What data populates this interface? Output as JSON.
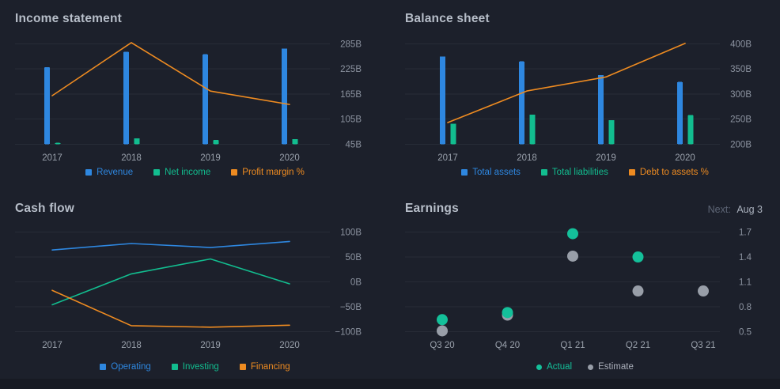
{
  "theme": {
    "background": "#1c202b",
    "gridline": "#272c37",
    "title_text": "#b7bec9",
    "y_tick_text": "#8c93a0",
    "x_tick_text": "#99a0ab",
    "blue": "#2e87e0",
    "teal": "#12bd8f",
    "orange": "#ee8b21",
    "gray": "#989ea8"
  },
  "chart_data": [
    {
      "id": "income-statement",
      "type": "bar",
      "title": "Income statement",
      "categories": [
        "2017",
        "2018",
        "2019",
        "2020"
      ],
      "y_ticks": [
        "285B",
        "225B",
        "165B",
        "105B",
        "45B"
      ],
      "ylim": [
        45,
        285
      ],
      "grid": true,
      "legend_position": "bottom",
      "legend_marker": "square",
      "series": [
        {
          "kind": "bar",
          "name": "Revenue",
          "color": "#2e87e0",
          "values": [
            229,
            266,
            260,
            274
          ]
        },
        {
          "kind": "bar",
          "name": "Net income",
          "color": "#12bd8f",
          "values": [
            48,
            59,
            55,
            57
          ]
        },
        {
          "kind": "line",
          "name": "Profit margin %",
          "color": "#ee8b21",
          "axis": "hidden-percent",
          "values_pct": [
            21.1,
            22.4,
            21.2,
            20.9
          ],
          "values_on_axis": [
            161,
            288,
            172,
            140
          ]
        }
      ]
    },
    {
      "id": "balance-sheet",
      "type": "bar",
      "title": "Balance sheet",
      "categories": [
        "2017",
        "2018",
        "2019",
        "2020"
      ],
      "y_ticks": [
        "400B",
        "350B",
        "300B",
        "250B",
        "200B"
      ],
      "ylim": [
        200,
        400
      ],
      "grid": true,
      "legend_position": "bottom",
      "legend_marker": "square",
      "series": [
        {
          "kind": "bar",
          "name": "Total assets",
          "color": "#2e87e0",
          "values": [
            375,
            365,
            338,
            324
          ]
        },
        {
          "kind": "bar",
          "name": "Total liabilities",
          "color": "#12bd8f",
          "values": [
            241,
            259,
            248,
            258
          ]
        },
        {
          "kind": "line",
          "name": "Debt to assets %",
          "color": "#ee8b21",
          "axis": "hidden-percent",
          "values_pct": [
            64.3,
            70.8,
            73.4,
            79.7
          ],
          "values_on_axis": [
            243,
            306,
            334,
            401
          ]
        }
      ]
    },
    {
      "id": "cash-flow",
      "type": "line",
      "title": "Cash flow",
      "categories": [
        "2017",
        "2018",
        "2019",
        "2020"
      ],
      "y_ticks": [
        "100B",
        "50B",
        "0B",
        "−50B",
        "−100B"
      ],
      "ylim": [
        -100,
        100
      ],
      "grid": true,
      "legend_position": "bottom",
      "legend_marker": "square",
      "series": [
        {
          "kind": "line",
          "name": "Operating",
          "color": "#2e87e0",
          "values": [
            64,
            77,
            69,
            81
          ]
        },
        {
          "kind": "line",
          "name": "Investing",
          "color": "#12bd8f",
          "values": [
            -46,
            16,
            46,
            -4
          ]
        },
        {
          "kind": "line",
          "name": "Financing",
          "color": "#ee8b21",
          "values": [
            -17,
            -88,
            -91,
            -87
          ]
        }
      ]
    },
    {
      "id": "earnings",
      "type": "scatter",
      "title": "Earnings",
      "next": {
        "label": "Next:",
        "value": "Aug 3"
      },
      "categories": [
        "Q3 20",
        "Q4 20",
        "Q1 21",
        "Q2 21",
        "Q3 21"
      ],
      "y_ticks": [
        "1.7",
        "1.4",
        "1.1",
        "0.8",
        "0.5"
      ],
      "ylim": [
        0.5,
        1.7
      ],
      "grid": true,
      "legend_position": "bottom",
      "legend_marker": "dot",
      "series": [
        {
          "kind": "scatter",
          "name": "Actual",
          "color": "#14c09a",
          "values": [
            0.645,
            0.73,
            1.68,
            1.4,
            null
          ]
        },
        {
          "kind": "scatter",
          "name": "Estimate",
          "color": "#989ea8",
          "label_color": "#a9aeb9",
          "values": [
            0.51,
            0.7,
            1.41,
            0.99,
            0.99
          ]
        }
      ]
    }
  ]
}
